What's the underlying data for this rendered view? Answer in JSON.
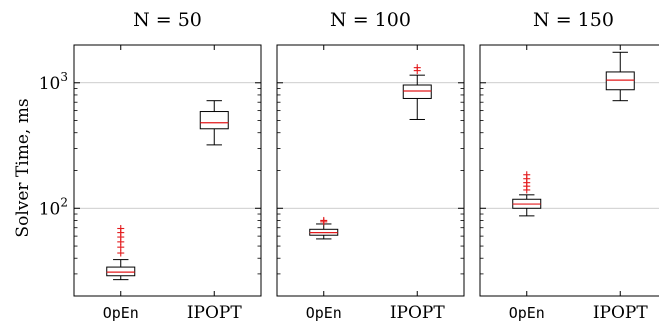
{
  "chart_data": {
    "type": "box",
    "ylabel": "Solver Time, ms",
    "yscale": "log",
    "ylim": [
      20,
      2000
    ],
    "yticks": [
      {
        "value": 100,
        "label": "10²"
      },
      {
        "value": 1000,
        "label": "10³"
      }
    ],
    "grid": true,
    "colors": {
      "median": "#e31a1c",
      "outlier": "#e31a1c",
      "box": "#000000"
    },
    "categories": [
      {
        "label": "OpEn",
        "mono": true
      },
      {
        "label": "IPOPT",
        "mono": false
      }
    ],
    "panels": [
      {
        "title": "N = 50",
        "boxes": [
          {
            "category": "OpEn",
            "whisker_low": 27,
            "q1": 29,
            "median": 31,
            "q3": 34,
            "whisker_high": 39,
            "outliers": [
              44,
              49,
              54,
              59,
              64,
              69
            ]
          },
          {
            "category": "IPOPT",
            "whisker_low": 320,
            "q1": 430,
            "median": 480,
            "q3": 590,
            "whisker_high": 720,
            "outliers": []
          }
        ]
      },
      {
        "title": "N = 100",
        "boxes": [
          {
            "category": "OpEn",
            "whisker_low": 57,
            "q1": 61,
            "median": 64,
            "q3": 68,
            "whisker_high": 75,
            "outliers": [
              78,
              80
            ]
          },
          {
            "category": "IPOPT",
            "whisker_low": 510,
            "q1": 750,
            "median": 860,
            "q3": 960,
            "whisker_high": 1150,
            "outliers": [
              1250,
              1320
            ]
          }
        ]
      },
      {
        "title": "N = 150",
        "boxes": [
          {
            "category": "OpEn",
            "whisker_low": 87,
            "q1": 100,
            "median": 108,
            "q3": 118,
            "whisker_high": 128,
            "outliers": [
              140,
              150,
              160,
              172,
              185
            ]
          },
          {
            "category": "IPOPT",
            "whisker_low": 720,
            "q1": 880,
            "median": 1050,
            "q3": 1220,
            "whisker_high": 1750,
            "outliers": []
          }
        ]
      }
    ]
  }
}
